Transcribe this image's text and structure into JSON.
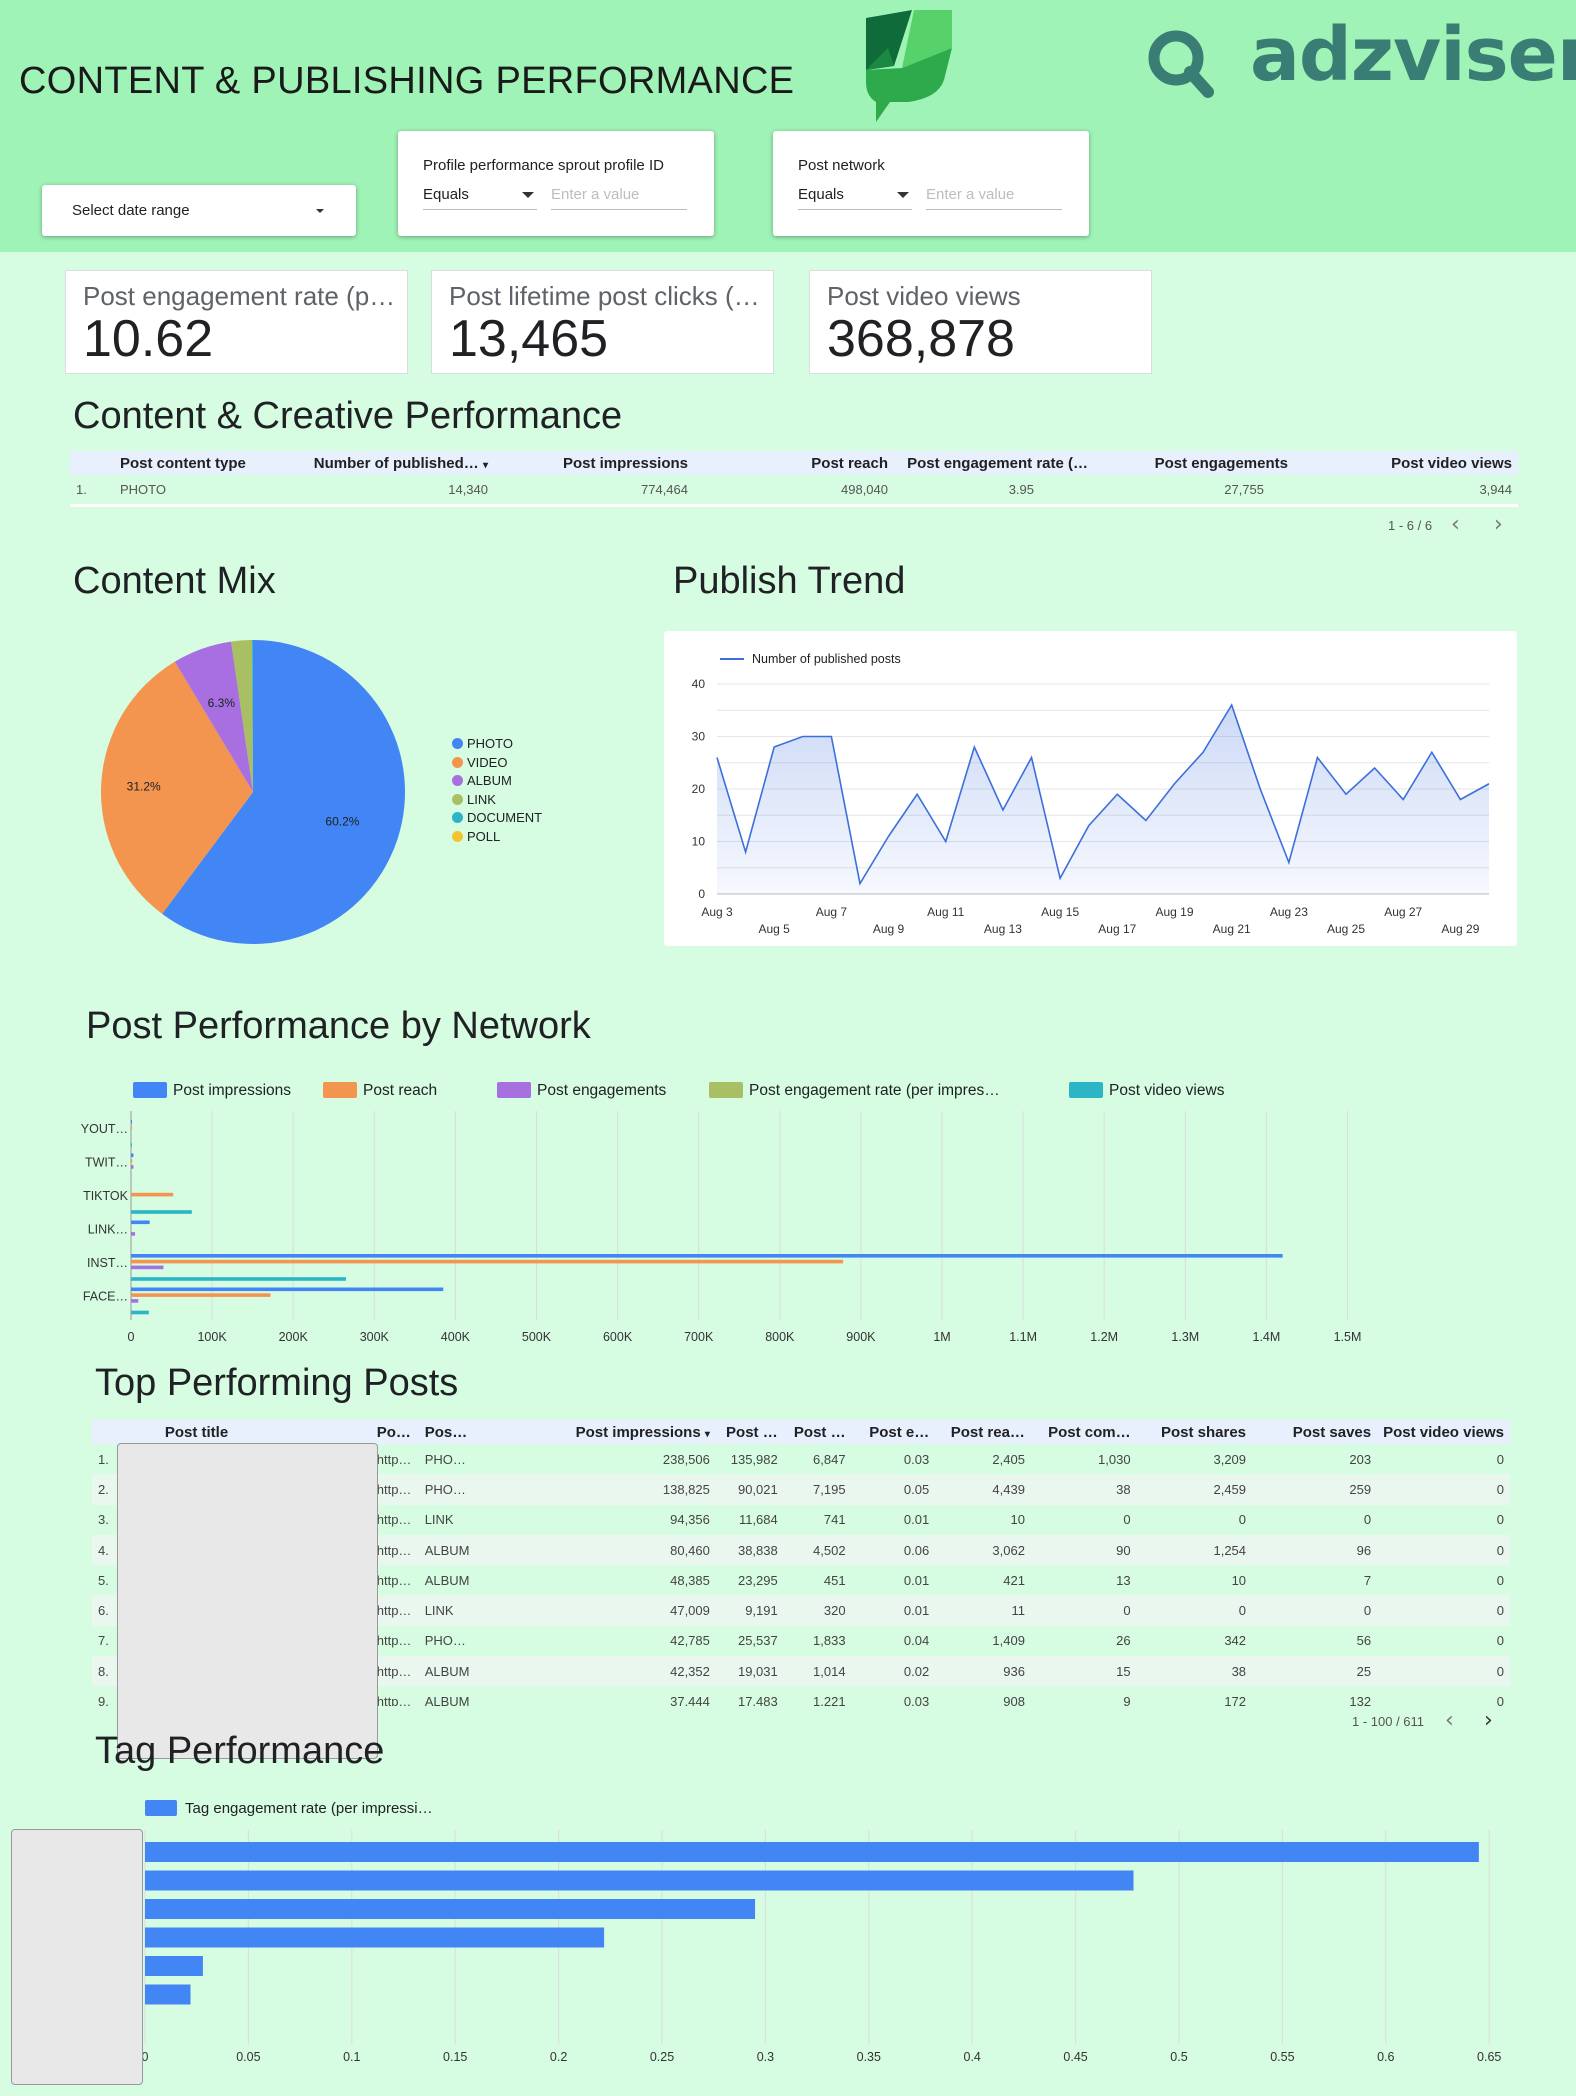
{
  "header": {
    "title": "CONTENT & PUBLISHING PERFORMANCE",
    "brand_text": "adzviser",
    "date_filter_label": "Select date range",
    "filter1": {
      "label": "Profile performance sprout profile ID",
      "operator": "Equals",
      "placeholder": "Enter a value"
    },
    "filter2": {
      "label": "Post network",
      "operator": "Equals",
      "placeholder": "Enter a value"
    }
  },
  "scorecards": [
    {
      "label": "Post engagement rate (p…",
      "value": "10.62"
    },
    {
      "label": "Post lifetime post clicks (…",
      "value": "13,465"
    },
    {
      "label": "Post video views",
      "value": "368,878"
    }
  ],
  "content_section": {
    "title": "Content & Creative Performance",
    "columns": [
      "Post content type",
      "Number of published…",
      "Post impressions",
      "Post reach",
      "Post engagement rate (…",
      "Post engagements",
      "Post video views"
    ],
    "rows": [
      {
        "idx": "1.",
        "type": "PHOTO",
        "published": "14,340",
        "impressions": "774,464",
        "reach": "498,040",
        "eng_rate": "3.95",
        "engagements": "27,755",
        "video_views": "3,944"
      }
    ],
    "pager": "1 - 6 / 6"
  },
  "content_mix": {
    "title": "Content Mix",
    "legend": [
      "PHOTO",
      "VIDEO",
      "ALBUM",
      "LINK",
      "DOCUMENT",
      "POLL"
    ],
    "legend_colors": [
      "#4285f4",
      "#f4954f",
      "#a76fe0",
      "#a8bf63",
      "#2bb5c5",
      "#f4c430"
    ],
    "slice_labels": [
      "60.2%",
      "31.2%",
      "6.3%"
    ]
  },
  "publish_trend": {
    "title": "Publish Trend",
    "series_name": "Number of published posts",
    "y_ticks": [
      "0",
      "10",
      "20",
      "30",
      "40"
    ],
    "x_ticks_top": [
      "Aug 3",
      "Aug 7",
      "Aug 11",
      "Aug 15",
      "Aug 19",
      "Aug 23",
      "Aug 27"
    ],
    "x_ticks_bottom": [
      "Aug 5",
      "Aug 9",
      "Aug 13",
      "Aug 17",
      "Aug 21",
      "Aug 25",
      "Aug 29"
    ]
  },
  "network_section": {
    "title": "Post Performance by Network",
    "legend": [
      "Post impressions",
      "Post reach",
      "Post engagements",
      "Post engagement rate (per impres…",
      "Post video views"
    ],
    "legend_colors": [
      "#4285f4",
      "#f4954f",
      "#a76fe0",
      "#a8bf63",
      "#2bb5c5"
    ],
    "x_ticks": [
      "0",
      "100K",
      "200K",
      "300K",
      "400K",
      "500K",
      "600K",
      "700K",
      "800K",
      "900K",
      "1M",
      "1.1M",
      "1.2M",
      "1.3M",
      "1.4M",
      "1.5M"
    ]
  },
  "top_posts": {
    "title": "Top Performing Posts",
    "columns": [
      "Post title",
      "Po…",
      "Pos…",
      "Post impressions",
      "Post …",
      "Post …",
      "Post e…",
      "Post rea…",
      "Post com…",
      "Post shares",
      "Post saves",
      "Post video views"
    ],
    "rows": [
      [
        "1.",
        "http…",
        "PHO…",
        "238,506",
        "135,982",
        "6,847",
        "0.03",
        "2,405",
        "1,030",
        "3,209",
        "203",
        "0"
      ],
      [
        "2.",
        "http…",
        "PHO…",
        "138,825",
        "90,021",
        "7,195",
        "0.05",
        "4,439",
        "38",
        "2,459",
        "259",
        "0"
      ],
      [
        "3.",
        "http…",
        "LINK",
        "94,356",
        "11,684",
        "741",
        "0.01",
        "10",
        "0",
        "0",
        "0",
        "0"
      ],
      [
        "4.",
        "http…",
        "ALBUM",
        "80,460",
        "38,838",
        "4,502",
        "0.06",
        "3,062",
        "90",
        "1,254",
        "96",
        "0"
      ],
      [
        "5.",
        "http…",
        "ALBUM",
        "48,385",
        "23,295",
        "451",
        "0.01",
        "421",
        "13",
        "10",
        "7",
        "0"
      ],
      [
        "6.",
        "http…",
        "LINK",
        "47,009",
        "9,191",
        "320",
        "0.01",
        "11",
        "0",
        "0",
        "0",
        "0"
      ],
      [
        "7.",
        "http…",
        "PHO…",
        "42,785",
        "25,537",
        "1,833",
        "0.04",
        "1,409",
        "26",
        "342",
        "56",
        "0"
      ],
      [
        "8.",
        "http…",
        "ALBUM",
        "42,352",
        "19,031",
        "1,014",
        "0.02",
        "936",
        "15",
        "38",
        "25",
        "0"
      ],
      [
        "9.",
        "http…",
        "ALBUM",
        "37,444",
        "17,483",
        "1,221",
        "0.03",
        "908",
        "9",
        "172",
        "132",
        "0"
      ]
    ],
    "pager": "1 - 100 / 611"
  },
  "tag_section": {
    "title": "Tag Performance",
    "legend": "Tag engagement rate (per impressi…",
    "x_ticks": [
      "0",
      "0.05",
      "0.1",
      "0.15",
      "0.2",
      "0.25",
      "0.3",
      "0.35",
      "0.4",
      "0.45",
      "0.5",
      "0.55",
      "0.6",
      "0.65"
    ]
  },
  "chart_data": [
    {
      "type": "pie",
      "title": "Content Mix",
      "categories": [
        "PHOTO",
        "VIDEO",
        "ALBUM",
        "LINK",
        "DOCUMENT",
        "POLL"
      ],
      "values": [
        60.2,
        31.2,
        6.3,
        2.2,
        0.1,
        0.0
      ],
      "colors": [
        "#4285f4",
        "#f4954f",
        "#a76fe0",
        "#a8bf63",
        "#2bb5c5",
        "#f4c430"
      ]
    },
    {
      "type": "area",
      "title": "Publish Trend",
      "x": [
        "Aug 3",
        "Aug 4",
        "Aug 5",
        "Aug 6",
        "Aug 7",
        "Aug 8",
        "Aug 9",
        "Aug 10",
        "Aug 11",
        "Aug 12",
        "Aug 13",
        "Aug 14",
        "Aug 15",
        "Aug 16",
        "Aug 17",
        "Aug 18",
        "Aug 19",
        "Aug 20",
        "Aug 21",
        "Aug 22",
        "Aug 23",
        "Aug 24",
        "Aug 25",
        "Aug 26",
        "Aug 27",
        "Aug 28",
        "Aug 29",
        "Aug 30"
      ],
      "series": [
        {
          "name": "Number of published posts",
          "values": [
            26,
            8,
            28,
            30,
            30,
            2,
            11,
            19,
            10,
            28,
            16,
            26,
            3,
            13,
            19,
            14,
            21,
            27,
            36,
            20,
            6,
            26,
            19,
            24,
            18,
            27,
            18,
            21
          ]
        }
      ],
      "ylim": [
        0,
        40
      ]
    },
    {
      "type": "bar",
      "orientation": "horizontal",
      "title": "Post Performance by Network",
      "categories": [
        "YOUT…",
        "TWIT…",
        "TIKTOK",
        "LINK…",
        "INST…",
        "FACE…"
      ],
      "series": [
        {
          "name": "Post impressions",
          "values": [
            1000,
            3000,
            0,
            23000,
            1420000,
            385000
          ]
        },
        {
          "name": "Post reach",
          "values": [
            500,
            1500,
            52000,
            0,
            878000,
            172000
          ]
        },
        {
          "name": "Post engagements",
          "values": [
            0,
            3000,
            0,
            5000,
            40000,
            9000
          ]
        },
        {
          "name": "Post engagement rate (per impres…",
          "values": [
            0,
            0,
            0,
            0,
            0,
            0
          ]
        },
        {
          "name": "Post video views",
          "values": [
            500,
            0,
            75000,
            0,
            265000,
            22000
          ]
        }
      ],
      "xlim": [
        0,
        1500000
      ]
    },
    {
      "type": "bar",
      "orientation": "horizontal",
      "title": "Tag Performance",
      "series": [
        {
          "name": "Tag engagement rate (per impressi…",
          "values": [
            0.645,
            0.478,
            0.295,
            0.222,
            0.028,
            0.022
          ]
        }
      ],
      "xlim": [
        0,
        0.65
      ]
    }
  ]
}
